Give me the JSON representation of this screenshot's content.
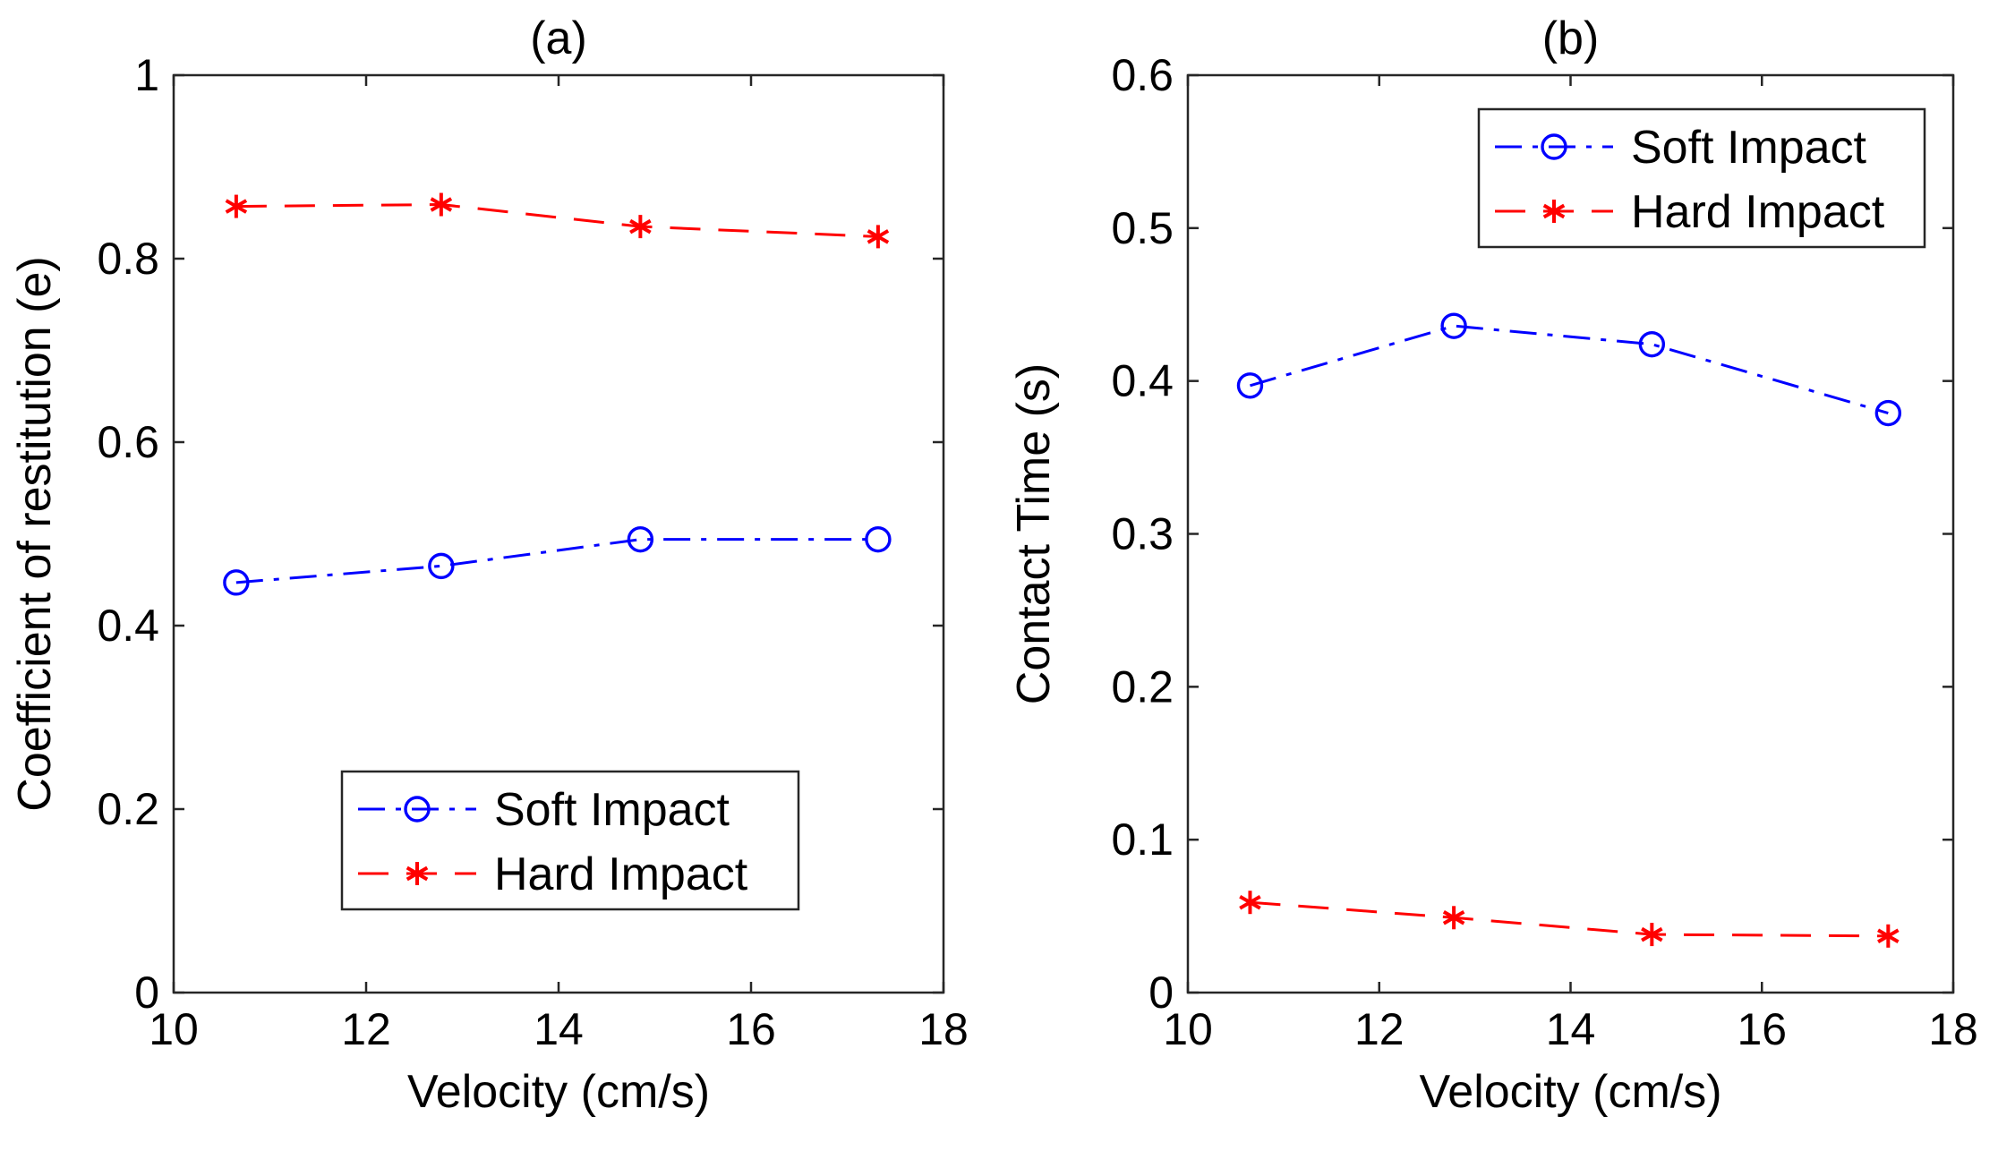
{
  "chart_data": [
    {
      "type": "line",
      "title": "(a)",
      "xlabel": "Velocity (cm/s)",
      "ylabel": "Coefficient of restitution (e)",
      "xlim": [
        10,
        18
      ],
      "ylim": [
        0,
        1
      ],
      "xticks": [
        10,
        12,
        14,
        16,
        18
      ],
      "yticks": [
        0,
        0.2,
        0.4,
        0.6,
        0.8,
        1
      ],
      "xtick_labels": [
        "10",
        "12",
        "14",
        "16",
        "18"
      ],
      "ytick_labels": [
        "0",
        "0.2",
        "0.4",
        "0.6",
        "0.8",
        "1"
      ],
      "legend_position": "bottom-center",
      "series": [
        {
          "name": "Soft Impact",
          "color": "#0000ff",
          "marker": "circle",
          "line_style": "dash-dot",
          "x": [
            10.65,
            12.78,
            14.85,
            17.32
          ],
          "values": [
            0.447,
            0.465,
            0.494,
            0.494
          ]
        },
        {
          "name": "Hard Impact",
          "color": "#ff0000",
          "marker": "asterisk",
          "line_style": "dashed",
          "x": [
            10.65,
            12.78,
            14.85,
            17.32
          ],
          "values": [
            0.857,
            0.859,
            0.835,
            0.824
          ]
        }
      ]
    },
    {
      "type": "line",
      "title": "(b)",
      "xlabel": "Velocity (cm/s)",
      "ylabel": "Contact Time (s)",
      "xlim": [
        10,
        18
      ],
      "ylim": [
        0,
        0.6
      ],
      "xticks": [
        10,
        12,
        14,
        16,
        18
      ],
      "yticks": [
        0,
        0.1,
        0.2,
        0.3,
        0.4,
        0.5,
        0.6
      ],
      "xtick_labels": [
        "10",
        "12",
        "14",
        "16",
        "18"
      ],
      "ytick_labels": [
        "0",
        "0.1",
        "0.2",
        "0.3",
        "0.4",
        "0.5",
        "0.6"
      ],
      "legend_position": "top-right",
      "series": [
        {
          "name": "Soft Impact",
          "color": "#0000ff",
          "marker": "circle",
          "line_style": "dash-dot",
          "x": [
            10.65,
            12.78,
            14.85,
            17.32
          ],
          "values": [
            0.397,
            0.436,
            0.424,
            0.379
          ]
        },
        {
          "name": "Hard Impact",
          "color": "#ff0000",
          "marker": "asterisk",
          "line_style": "dashed",
          "x": [
            10.65,
            12.78,
            14.85,
            17.32
          ],
          "values": [
            0.059,
            0.049,
            0.038,
            0.037
          ]
        }
      ]
    }
  ]
}
